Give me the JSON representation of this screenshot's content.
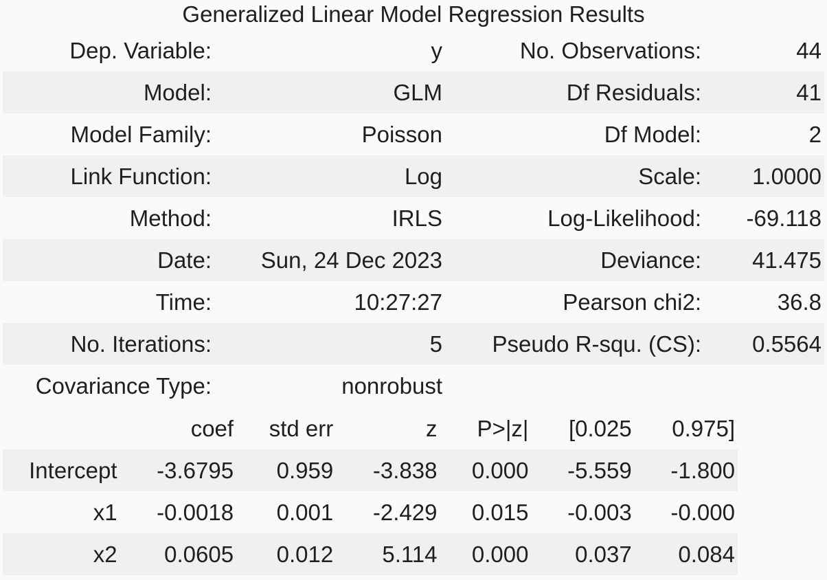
{
  "title": "Generalized Linear Model Regression Results",
  "summary": [
    {
      "label1": "Dep. Variable:",
      "value1": "y",
      "label2": "No. Observations:",
      "value2": "44"
    },
    {
      "label1": "Model:",
      "value1": "GLM",
      "label2": "Df Residuals:",
      "value2": "41"
    },
    {
      "label1": "Model Family:",
      "value1": "Poisson",
      "label2": "Df Model:",
      "value2": "2"
    },
    {
      "label1": "Link Function:",
      "value1": "Log",
      "label2": "Scale:",
      "value2": "1.0000"
    },
    {
      "label1": "Method:",
      "value1": "IRLS",
      "label2": "Log-Likelihood:",
      "value2": "-69.118"
    },
    {
      "label1": "Date:",
      "value1": "Sun, 24 Dec 2023",
      "label2": "Deviance:",
      "value2": "41.475"
    },
    {
      "label1": "Time:",
      "value1": "10:27:27",
      "label2": "Pearson chi2:",
      "value2": "36.8"
    },
    {
      "label1": "No. Iterations:",
      "value1": "5",
      "label2": "Pseudo R-squ. (CS):",
      "value2": "0.5564"
    },
    {
      "label1": "Covariance Type:",
      "value1": "nonrobust",
      "label2": "",
      "value2": ""
    }
  ],
  "coef_header": [
    "",
    "coef",
    "std err",
    "z",
    "P>|z|",
    "[0.025",
    "0.975]"
  ],
  "coef_rows": [
    [
      "Intercept",
      "-3.6795",
      "0.959",
      "-3.838",
      "0.000",
      "-5.559",
      "-1.800"
    ],
    [
      "x1",
      "-0.0018",
      "0.001",
      "-2.429",
      "0.015",
      "-0.003",
      "-0.000"
    ],
    [
      "x2",
      "0.0605",
      "0.012",
      "5.114",
      "0.000",
      "0.037",
      "0.084"
    ]
  ]
}
